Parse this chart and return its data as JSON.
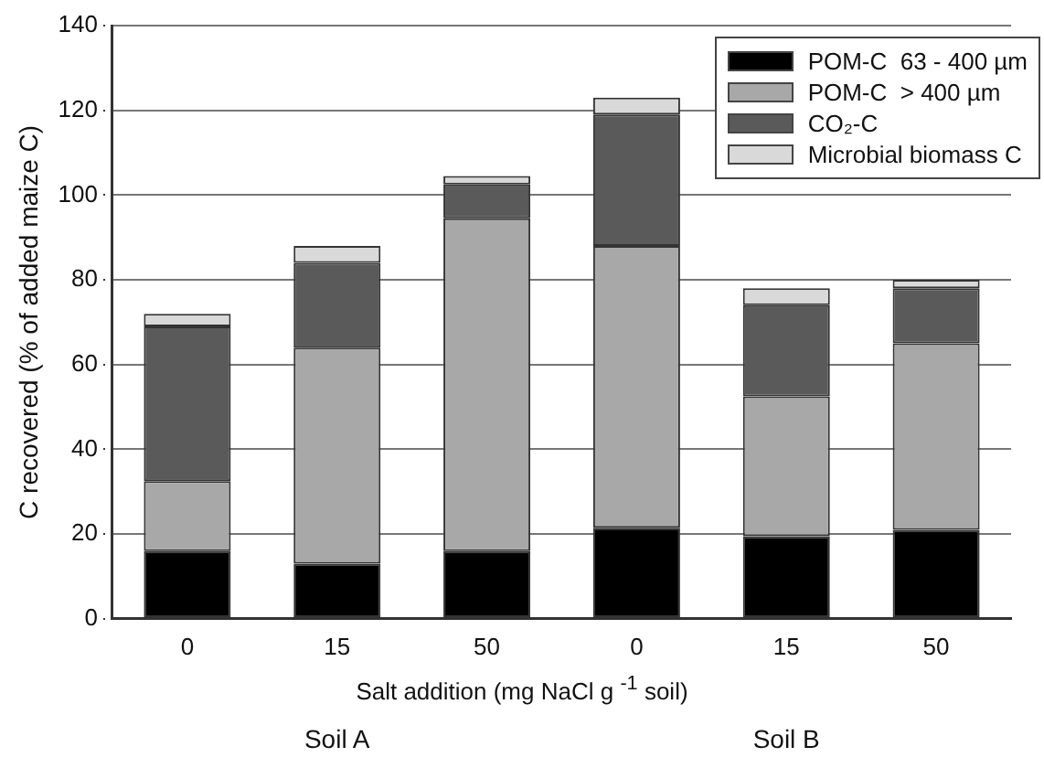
{
  "chart_data": {
    "type": "bar",
    "stacked": true,
    "categories": [
      "0",
      "15",
      "50",
      "0",
      "15",
      "50"
    ],
    "series": [
      {
        "name": "POM-C  63 - 400 µm",
        "color": "#000000",
        "values": [
          16,
          13,
          16,
          21.5,
          19.5,
          21
        ]
      },
      {
        "name": "POM-C  > 400 µm",
        "color": "#a8a8a8",
        "values": [
          16.5,
          51,
          78.5,
          66.5,
          33,
          44
        ]
      },
      {
        "name": "CO₂-C",
        "color": "#5a5a5a",
        "values": [
          36.5,
          20,
          8,
          31,
          21.5,
          13
        ]
      },
      {
        "name": "Microbial biomass C",
        "color": "#d9d9d9",
        "values": [
          3,
          4,
          2,
          4,
          4,
          2
        ]
      }
    ],
    "ylim": [
      0,
      140
    ],
    "yticks": [
      0,
      20,
      40,
      60,
      80,
      100,
      120,
      140
    ],
    "xlabel": "Salt addition (mg NaCl g $^{-1}$ soil)",
    "ylabel": "C recovered (% of added maize C)",
    "annotations": [
      "Soil A",
      "Soil B"
    ],
    "grid": "y",
    "legend": "top right"
  }
}
